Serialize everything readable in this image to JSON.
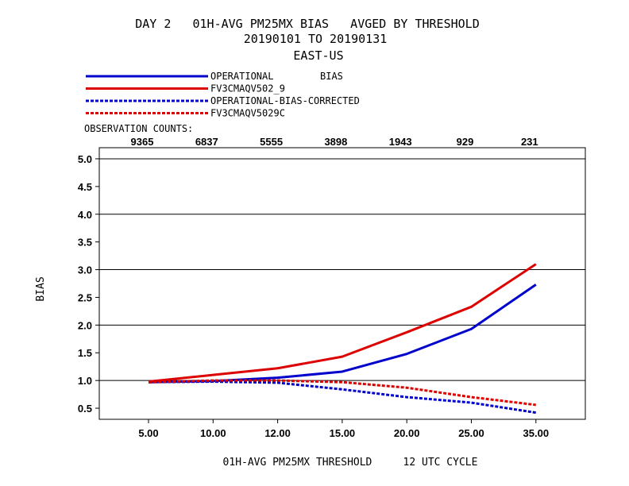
{
  "chart_data": {
    "type": "line",
    "title_line1": "DAY 2   01H-AVG PM25MX BIAS   AVGED BY THRESHOLD",
    "title_line2": "20190101 TO 20190131",
    "title_line3": "EAST-US",
    "xlabel": "01H-AVG PM25MX THRESHOLD     12 UTC CYCLE",
    "ylabel": "BIAS",
    "categories": [
      "5.00",
      "10.00",
      "12.00",
      "15.00",
      "20.00",
      "25.00",
      "35.00"
    ],
    "obs_title": "OBSERVATION COUNTS:",
    "obs_counts": [
      "9365",
      "6837",
      "5555",
      "3898",
      "1943",
      "929",
      "231"
    ],
    "ylim": [
      0.3,
      5.2
    ],
    "yticks": [
      "0.5",
      "1.0",
      "1.5",
      "2.0",
      "2.5",
      "3.0",
      "3.5",
      "4.0",
      "4.5",
      "5.0"
    ],
    "grid_y": [
      1.0,
      2.0,
      3.0,
      4.0,
      5.0
    ],
    "bias_tag": "BIAS",
    "series": [
      {
        "name": "OPERATIONAL",
        "color": "#0000cc",
        "dashed": false,
        "values": [
          0.97,
          0.99,
          1.05,
          1.16,
          1.48,
          1.93,
          2.73
        ]
      },
      {
        "name": "FV3CMAQV502_9",
        "color": "#dd0000",
        "dashed": false,
        "values": [
          0.98,
          1.1,
          1.22,
          1.43,
          1.87,
          2.33,
          3.1
        ]
      },
      {
        "name": "OPERATIONAL-BIAS-CORRECTED",
        "color": "#0000cc",
        "dashed": true,
        "values": [
          0.97,
          0.98,
          0.96,
          0.84,
          0.7,
          0.6,
          0.42
        ]
      },
      {
        "name": "FV3CMAQV5029C",
        "color": "#dd0000",
        "dashed": true,
        "values": [
          0.97,
          1.0,
          1.0,
          0.97,
          0.87,
          0.7,
          0.56
        ]
      }
    ]
  }
}
